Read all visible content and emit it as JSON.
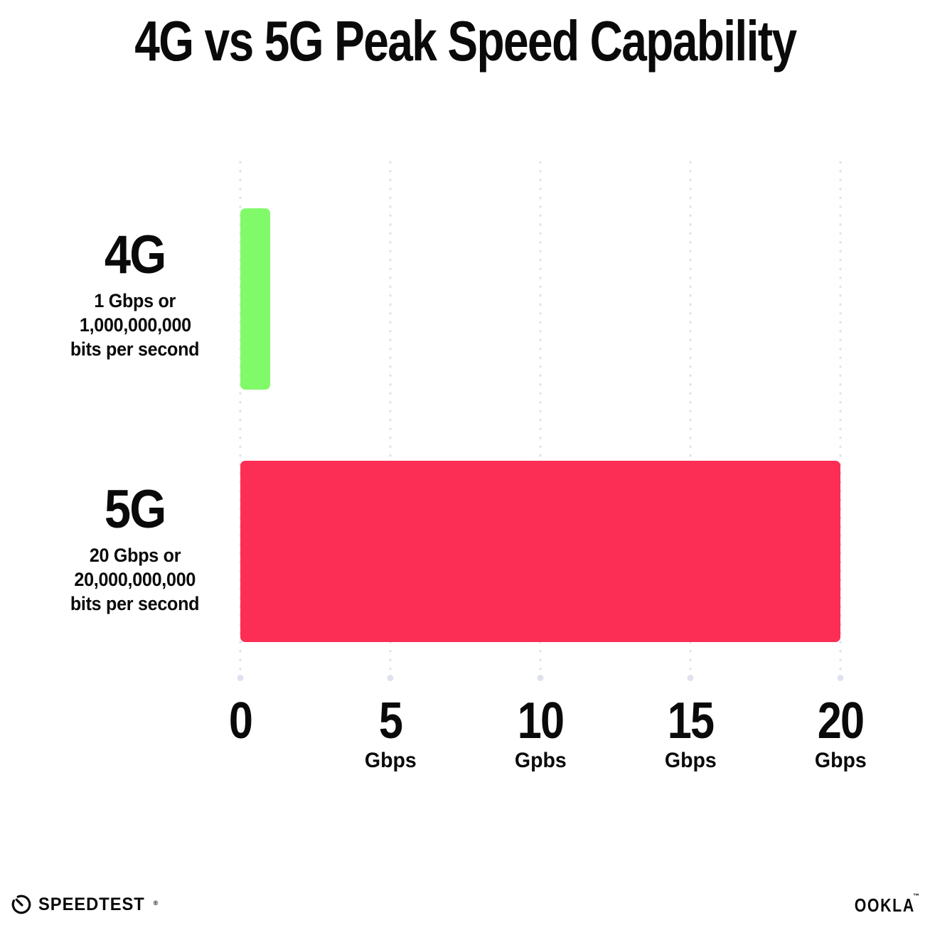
{
  "title": "4G vs 5G Peak Speed Capability",
  "chart_data": {
    "type": "bar",
    "orientation": "horizontal",
    "title": "4G vs 5G Peak Speed Capability",
    "categories": [
      "4G",
      "5G"
    ],
    "values": [
      1,
      20
    ],
    "value_unit": "Gbps",
    "xlim": [
      0,
      20
    ],
    "bar_colors": [
      "#81fa6a",
      "#fd2e55"
    ],
    "grid_color": "#dfe2ee",
    "grid": "dotted vertical gridlines every 5 Gbps, larger dot at axis base",
    "legend": "none",
    "rows": [
      {
        "label": "4G",
        "value": 1,
        "sublabel_lines": [
          "1 Gbps or",
          "1,000,000,000",
          "bits per second"
        ]
      },
      {
        "label": "5G",
        "value": 20,
        "sublabel_lines": [
          "20 Gbps or",
          "20,000,000,000",
          "bits per second"
        ]
      }
    ],
    "x_ticks": [
      {
        "label": "0",
        "unit": ""
      },
      {
        "label": "5",
        "unit": "Gbps"
      },
      {
        "label": "10",
        "unit": "Gpbs"
      },
      {
        "label": "15",
        "unit": "Gbps"
      },
      {
        "label": "20",
        "unit": "Gbps"
      }
    ]
  },
  "footer": {
    "speedtest_label": "SPEEDTEST",
    "speedtest_mark": "®",
    "ookla_label": "OOKLA",
    "ookla_mark": "™"
  }
}
